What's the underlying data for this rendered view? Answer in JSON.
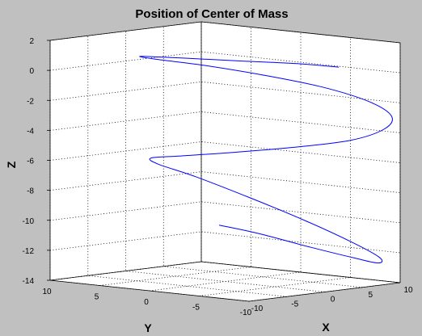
{
  "chart_data": {
    "type": "line",
    "projection": "3d",
    "title": "Position of Center of Mass",
    "xlabel": "X",
    "ylabel": "Y",
    "zlabel": "Z",
    "xlim": [
      -10,
      10
    ],
    "ylim": [
      -10,
      10
    ],
    "zlim": [
      -14,
      2
    ],
    "x_ticks": [
      "-10",
      "-5",
      "0",
      "5",
      "10"
    ],
    "y_ticks": [
      "10",
      "5",
      "0",
      "-5",
      "-10"
    ],
    "z_ticks": [
      "2",
      "0",
      "-2",
      "-4",
      "-6",
      "-8",
      "-10",
      "-12",
      "-14"
    ],
    "grid": true,
    "background": "#c0c0c0",
    "line_color": "#0000ff",
    "series": [
      {
        "x": [
          -3.3,
          -1.4,
          1.6,
          5.0,
          7.9,
          9.5,
          9.5,
          7.9,
          5.0,
          1.6,
          -1.3,
          -2.6,
          -1.5,
          1.4,
          4.9,
          7.7,
          9.3,
          9.4,
          7.8,
          4.8,
          1.2,
          -2.0,
          -4.1,
          -4.4,
          -2.9,
          0.1,
          3.6,
          6.4,
          7.8
        ],
        "y": [
          -1.9,
          -4.4,
          -7.4,
          -9.2,
          -9.4,
          -8.3,
          -5.6,
          -2.1,
          1.4,
          4.2,
          5.7,
          5.5,
          3.6,
          0.3,
          -3.4,
          -6.7,
          -8.9,
          -9.6,
          -8.6,
          -6.1,
          -2.8,
          0.7,
          3.5,
          5.2,
          5.5,
          4.1,
          1.2,
          -2.4,
          -5.5
        ],
        "z": [
          -9.9,
          -10.4,
          -11.3,
          -12.1,
          -12.6,
          -12.4,
          -11.6,
          -10.3,
          -8.8,
          -7.4,
          -6.5,
          -6.0,
          -5.8,
          -5.5,
          -5.1,
          -4.6,
          -3.8,
          -2.9,
          -1.9,
          -0.9,
          -0.1,
          0.5,
          0.8,
          0.9,
          0.8,
          0.6,
          0.4,
          0.3,
          0.2
        ]
      }
    ]
  }
}
